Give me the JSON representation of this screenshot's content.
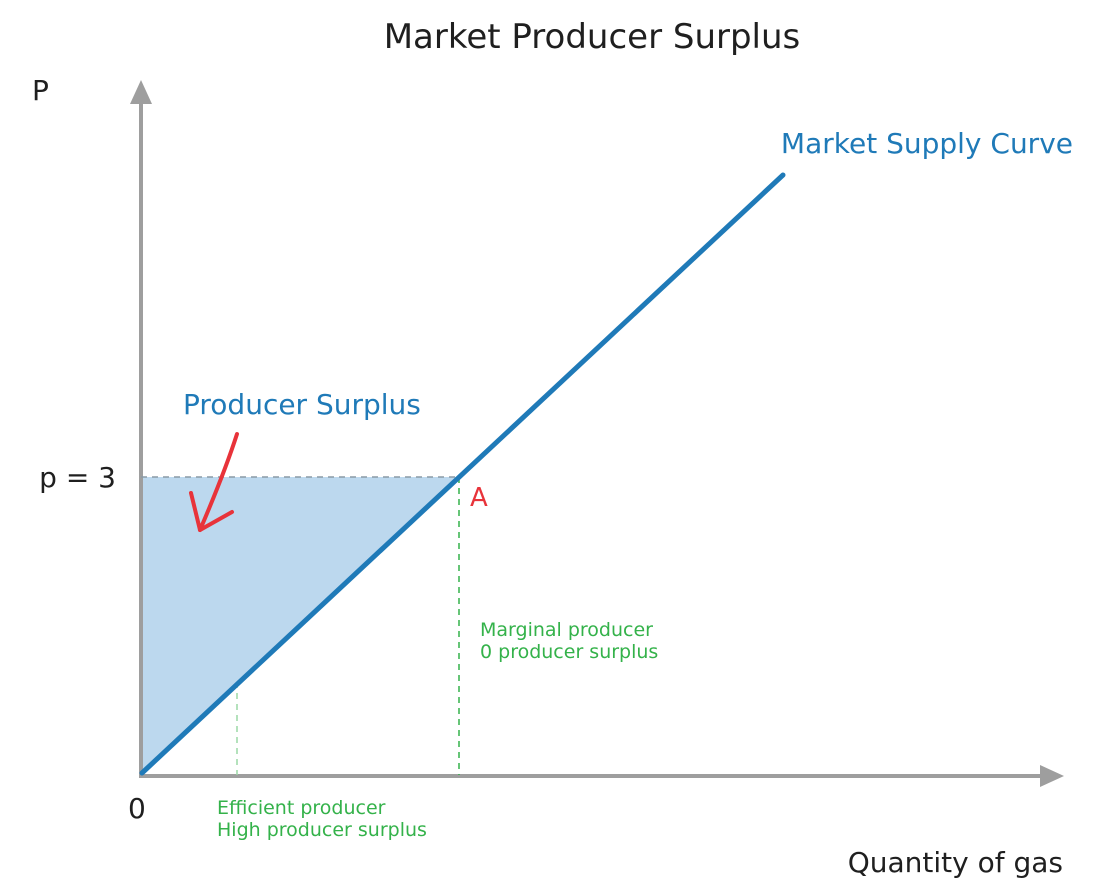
{
  "title": "Market Producer Surplus",
  "axes": {
    "y_label": "P",
    "x_label": "Quantity of gas",
    "origin_label": "0"
  },
  "price_label": "p = 3",
  "curve_label": "Market Supply Curve",
  "area_label": "Producer Surplus",
  "point_label": "A",
  "efficient_producer": {
    "line1": "Efficient producer",
    "line2": "High producer surplus"
  },
  "marginal_producer": {
    "line1": "Marginal producer",
    "line2": "0 producer surplus"
  },
  "colors": {
    "axis": "#9e9e9e",
    "curve": "#1f7ab8",
    "surplus_fill": "#bcd8ee",
    "annotation_green": "#34b24a",
    "annotation_red": "#e8333a",
    "text": "#1f1f1f"
  }
}
